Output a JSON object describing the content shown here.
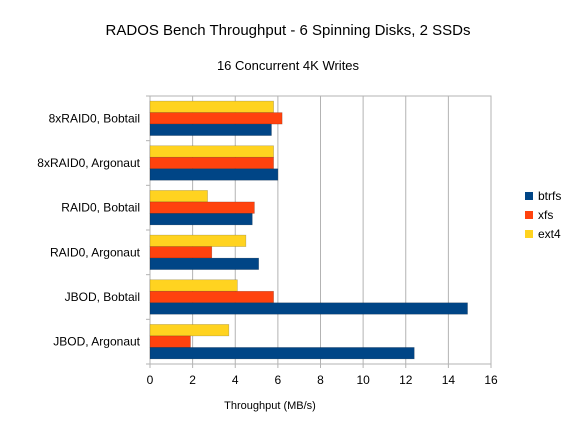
{
  "chart_data": {
    "type": "bar",
    "orientation": "horizontal",
    "title": "RADOS Bench Throughput - 6 Spinning Disks, 2 SSDs",
    "subtitle": "16 Concurrent 4K Writes",
    "xlabel": "Throughput (MB/s)",
    "ylabel": "",
    "xlim": [
      0,
      16
    ],
    "xticks": [
      0,
      2,
      4,
      6,
      8,
      10,
      12,
      14,
      16
    ],
    "grid": true,
    "legend_position": "right",
    "categories": [
      "8xRAID0, Bobtail",
      "8xRAID0, Argonaut",
      "RAID0, Bobtail",
      "RAID0, Argonaut",
      "JBOD, Bobtail",
      "JBOD, Argonaut"
    ],
    "series": [
      {
        "name": "btrfs",
        "color": "#004586",
        "values": [
          5.7,
          6.0,
          4.8,
          5.1,
          14.9,
          12.4
        ]
      },
      {
        "name": "xfs",
        "color": "#ff420e",
        "values": [
          6.2,
          5.8,
          4.9,
          2.9,
          5.8,
          1.9
        ]
      },
      {
        "name": "ext4",
        "color": "#ffd320",
        "values": [
          5.8,
          5.8,
          2.7,
          4.5,
          4.1,
          3.7
        ]
      }
    ]
  }
}
